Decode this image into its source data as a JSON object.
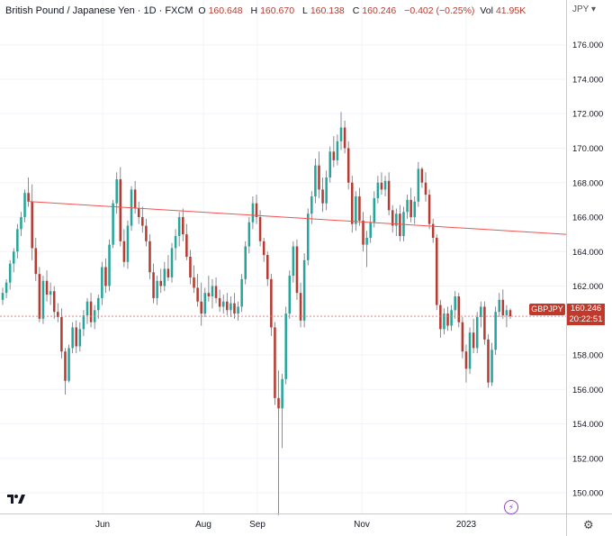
{
  "header": {
    "symbol": "British Pound / Japanese Yen · 1D · FXCM",
    "o_label": "O",
    "o_value": "160.648",
    "h_label": "H",
    "h_value": "160.670",
    "l_label": "L",
    "l_value": "160.138",
    "c_label": "C",
    "c_value": "160.246",
    "change": "−0.402 (−0.25%)",
    "vol_label": "Vol",
    "vol_value": "41.95K"
  },
  "currency_selector": "JPY",
  "price_tag": "GBPJPY",
  "last_price": "160.246",
  "countdown": "20:22:51",
  "colors": {
    "up": "#26a69a",
    "down": "#b43c32",
    "trendline": "#ef5350",
    "text": "#131722"
  },
  "icons": {
    "logo": "tradingview-logo-icon",
    "flash": "flash-icon",
    "settings": "gear-icon"
  },
  "chart_data": {
    "type": "candlestick",
    "ylim": [
      148.8,
      178.6
    ],
    "yticks": [
      "176.000",
      "174.000",
      "172.000",
      "170.000",
      "168.000",
      "166.000",
      "164.000",
      "162.000",
      "160.000",
      "158.000",
      "156.000",
      "154.000",
      "152.000",
      "150.000"
    ],
    "xticks": [
      "Jun",
      "Aug",
      "Sep",
      "Nov",
      "2023"
    ],
    "last_close": 160.246,
    "trendline": {
      "from": 166.9,
      "to": 165.0
    },
    "candles": [
      [
        161.2,
        161.9,
        160.9,
        161.6
      ],
      [
        161.6,
        162.4,
        161.3,
        162.2
      ],
      [
        162.2,
        163.5,
        161.8,
        163.3
      ],
      [
        163.3,
        164.2,
        162.8,
        164.0
      ],
      [
        164.0,
        165.6,
        163.6,
        165.3
      ],
      [
        165.3,
        166.3,
        164.9,
        166.0
      ],
      [
        166.0,
        167.6,
        165.7,
        167.4
      ],
      [
        167.4,
        168.3,
        166.6,
        166.9
      ],
      [
        166.9,
        167.9,
        163.5,
        164.2
      ],
      [
        164.2,
        164.8,
        162.3,
        162.7
      ],
      [
        162.7,
        163.1,
        159.9,
        160.1
      ],
      [
        160.1,
        162.6,
        159.8,
        162.3
      ],
      [
        162.3,
        162.9,
        161.1,
        161.5
      ],
      [
        161.5,
        162.2,
        160.9,
        161.7
      ],
      [
        161.7,
        162.0,
        160.1,
        160.5
      ],
      [
        160.5,
        161.0,
        159.9,
        160.2
      ],
      [
        160.2,
        160.7,
        157.8,
        158.2
      ],
      [
        158.2,
        158.4,
        155.7,
        156.5
      ],
      [
        156.5,
        158.6,
        156.4,
        158.4
      ],
      [
        158.4,
        159.9,
        158.1,
        159.6
      ],
      [
        159.6,
        160.0,
        158.1,
        158.5
      ],
      [
        158.5,
        159.9,
        158.2,
        159.5
      ],
      [
        159.5,
        160.6,
        159.1,
        160.3
      ],
      [
        160.3,
        161.3,
        159.8,
        161.1
      ],
      [
        161.1,
        161.6,
        159.6,
        159.9
      ],
      [
        159.9,
        160.9,
        159.5,
        160.6
      ],
      [
        160.6,
        161.5,
        160.1,
        161.3
      ],
      [
        161.3,
        163.4,
        160.9,
        163.1
      ],
      [
        163.1,
        163.6,
        161.6,
        162.0
      ],
      [
        162.0,
        164.7,
        161.7,
        164.4
      ],
      [
        164.4,
        167.0,
        164.2,
        166.8
      ],
      [
        166.8,
        168.6,
        166.2,
        168.2
      ],
      [
        168.2,
        168.9,
        164.3,
        164.6
      ],
      [
        164.6,
        165.3,
        163.1,
        163.4
      ],
      [
        163.4,
        165.8,
        163.0,
        165.5
      ],
      [
        165.5,
        167.8,
        165.2,
        167.6
      ],
      [
        167.6,
        168.1,
        166.2,
        166.5
      ],
      [
        166.5,
        166.9,
        165.6,
        166.0
      ],
      [
        166.0,
        166.6,
        165.1,
        165.5
      ],
      [
        165.5,
        165.9,
        164.3,
        164.6
      ],
      [
        164.6,
        165.0,
        162.4,
        162.8
      ],
      [
        162.8,
        163.3,
        161.0,
        161.3
      ],
      [
        161.3,
        162.6,
        160.9,
        162.3
      ],
      [
        162.3,
        163.0,
        161.6,
        162.0
      ],
      [
        162.0,
        163.4,
        161.7,
        163.0
      ],
      [
        163.0,
        163.8,
        162.3,
        162.5
      ],
      [
        162.5,
        164.5,
        162.2,
        164.2
      ],
      [
        164.2,
        165.3,
        163.5,
        164.9
      ],
      [
        164.9,
        166.3,
        164.3,
        166.0
      ],
      [
        166.0,
        166.5,
        164.6,
        165.0
      ],
      [
        165.0,
        165.6,
        163.5,
        163.7
      ],
      [
        163.7,
        164.1,
        162.1,
        162.5
      ],
      [
        162.5,
        163.2,
        161.6,
        161.9
      ],
      [
        161.9,
        162.7,
        160.8,
        161.1
      ],
      [
        161.1,
        162.2,
        159.7,
        160.4
      ],
      [
        160.4,
        161.9,
        160.2,
        161.6
      ],
      [
        161.6,
        162.6,
        161.1,
        161.4
      ],
      [
        161.4,
        162.4,
        160.7,
        162.0
      ],
      [
        162.0,
        162.5,
        161.0,
        161.3
      ],
      [
        161.3,
        161.8,
        160.5,
        160.8
      ],
      [
        160.8,
        161.5,
        160.4,
        161.1
      ],
      [
        161.1,
        161.6,
        160.3,
        160.6
      ],
      [
        160.6,
        161.4,
        160.2,
        161.0
      ],
      [
        161.0,
        161.6,
        160.1,
        160.4
      ],
      [
        160.4,
        161.1,
        160.0,
        160.8
      ],
      [
        160.8,
        162.7,
        160.5,
        162.4
      ],
      [
        162.4,
        164.6,
        162.1,
        164.3
      ],
      [
        164.3,
        166.0,
        163.9,
        165.7
      ],
      [
        165.7,
        167.2,
        165.3,
        166.8
      ],
      [
        166.8,
        167.3,
        165.6,
        166.0
      ],
      [
        166.0,
        166.4,
        164.3,
        164.6
      ],
      [
        164.6,
        164.8,
        163.4,
        163.8
      ],
      [
        163.8,
        164.0,
        162.0,
        162.4
      ],
      [
        162.4,
        162.7,
        159.1,
        159.6
      ],
      [
        159.6,
        159.9,
        155.1,
        155.5
      ],
      [
        155.5,
        157.1,
        148.7,
        154.9
      ],
      [
        154.9,
        156.9,
        152.6,
        156.6
      ],
      [
        156.6,
        160.8,
        156.3,
        160.4
      ],
      [
        160.4,
        162.9,
        160.1,
        162.6
      ],
      [
        162.6,
        164.6,
        162.2,
        164.3
      ],
      [
        164.3,
        164.7,
        161.2,
        161.6
      ],
      [
        161.6,
        162.2,
        159.6,
        160.0
      ],
      [
        160.0,
        163.9,
        159.6,
        163.5
      ],
      [
        163.5,
        166.5,
        163.2,
        166.2
      ],
      [
        166.2,
        167.5,
        165.6,
        167.2
      ],
      [
        167.2,
        169.4,
        166.8,
        169.0
      ],
      [
        169.0,
        169.8,
        167.1,
        167.6
      ],
      [
        167.6,
        168.3,
        166.3,
        166.8
      ],
      [
        166.8,
        168.7,
        166.4,
        168.3
      ],
      [
        168.3,
        170.1,
        168.0,
        169.8
      ],
      [
        169.8,
        170.7,
        168.9,
        169.3
      ],
      [
        169.3,
        170.8,
        169.0,
        170.4
      ],
      [
        170.4,
        172.1,
        169.9,
        171.2
      ],
      [
        171.2,
        171.6,
        169.7,
        170.0
      ],
      [
        170.0,
        170.4,
        167.6,
        168.0
      ],
      [
        168.0,
        168.4,
        165.1,
        165.6
      ],
      [
        165.6,
        167.5,
        165.2,
        167.2
      ],
      [
        167.2,
        167.7,
        165.5,
        165.8
      ],
      [
        165.8,
        166.3,
        164.0,
        164.4
      ],
      [
        164.4,
        165.2,
        163.1,
        164.8
      ],
      [
        164.8,
        166.1,
        164.5,
        165.7
      ],
      [
        165.7,
        167.5,
        165.4,
        167.1
      ],
      [
        167.1,
        168.4,
        166.8,
        168.0
      ],
      [
        168.0,
        168.6,
        167.3,
        167.6
      ],
      [
        167.6,
        168.4,
        167.2,
        168.1
      ],
      [
        168.1,
        168.6,
        166.1,
        166.4
      ],
      [
        166.4,
        166.7,
        165.1,
        165.5
      ],
      [
        165.5,
        166.5,
        164.9,
        166.2
      ],
      [
        166.2,
        166.7,
        164.6,
        164.9
      ],
      [
        164.9,
        166.6,
        164.6,
        166.3
      ],
      [
        166.3,
        167.3,
        165.9,
        167.0
      ],
      [
        167.0,
        167.7,
        165.7,
        166.0
      ],
      [
        166.0,
        167.2,
        165.6,
        166.9
      ],
      [
        166.9,
        169.2,
        166.6,
        168.8
      ],
      [
        168.8,
        168.9,
        167.7,
        168.0
      ],
      [
        168.0,
        168.6,
        166.9,
        167.3
      ],
      [
        167.3,
        167.6,
        165.3,
        165.6
      ],
      [
        165.6,
        165.9,
        164.5,
        164.8
      ],
      [
        164.8,
        165.0,
        160.6,
        160.9
      ],
      [
        160.9,
        161.2,
        159.0,
        159.5
      ],
      [
        159.5,
        160.7,
        159.2,
        160.4
      ],
      [
        160.4,
        160.8,
        159.4,
        159.7
      ],
      [
        159.7,
        160.9,
        159.4,
        160.6
      ],
      [
        160.6,
        161.7,
        160.1,
        161.4
      ],
      [
        161.4,
        161.6,
        159.6,
        159.9
      ],
      [
        159.9,
        160.2,
        157.8,
        158.2
      ],
      [
        158.2,
        158.6,
        156.4,
        157.2
      ],
      [
        157.2,
        159.6,
        156.9,
        159.3
      ],
      [
        159.3,
        160.1,
        158.1,
        158.4
      ],
      [
        158.4,
        160.5,
        158.1,
        160.2
      ],
      [
        160.2,
        161.1,
        159.6,
        160.8
      ],
      [
        160.8,
        161.1,
        158.6,
        158.9
      ],
      [
        158.9,
        159.2,
        156.1,
        156.4
      ],
      [
        156.4,
        158.7,
        156.2,
        158.3
      ],
      [
        158.3,
        160.8,
        158.0,
        160.5
      ],
      [
        160.5,
        161.6,
        160.2,
        161.2
      ],
      [
        161.2,
        161.8,
        160.1,
        160.3
      ],
      [
        160.3,
        160.9,
        159.6,
        160.6
      ],
      [
        160.6,
        160.7,
        160.1,
        160.246
      ]
    ]
  }
}
